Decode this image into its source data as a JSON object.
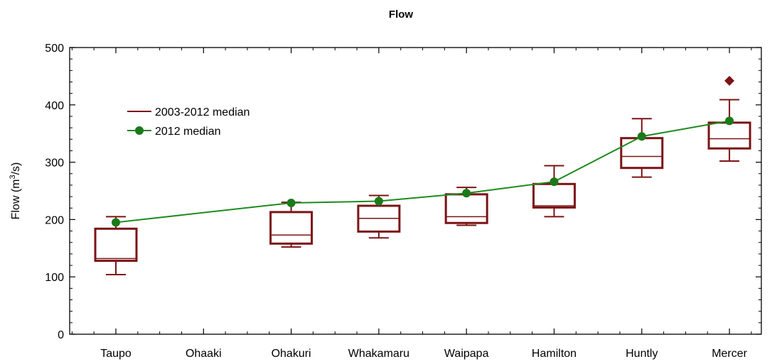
{
  "chart_data": {
    "type": "box",
    "title": "Flow",
    "xlabel": "",
    "ylabel_prefix": "Flow (m",
    "ylabel_sup": "3",
    "ylabel_suffix": "/s)",
    "ylim": [
      0,
      500
    ],
    "yticks": [
      0,
      100,
      200,
      300,
      400,
      500
    ],
    "categories": [
      "Taupo",
      "Ohaaki",
      "Ohakuri",
      "Whakamaru",
      "Waipapa",
      "Hamilton",
      "Huntly",
      "Mercer"
    ],
    "box_color": "#7b1416",
    "line_color": "#1f8a1f",
    "marker_color": "#1a7a1a",
    "outlier_color": "#7b1416",
    "legend": {
      "placement": "top-left",
      "box_label": "2003-2012 median",
      "line_label": "2012 median"
    },
    "boxes": [
      {
        "category": "Taupo",
        "whisker_low": 104,
        "q1": 128,
        "median": 132,
        "q3": 184,
        "whisker_high": 205
      },
      {
        "category": "Ohaaki",
        "whisker_low": null,
        "q1": null,
        "median": null,
        "q3": null,
        "whisker_high": null
      },
      {
        "category": "Ohakuri",
        "whisker_low": 152,
        "q1": 158,
        "median": 173,
        "q3": 213,
        "whisker_high": 230
      },
      {
        "category": "Whakamaru",
        "whisker_low": 168,
        "q1": 179,
        "median": 202,
        "q3": 224,
        "whisker_high": 242
      },
      {
        "category": "Waipapa",
        "whisker_low": 190,
        "q1": 194,
        "median": 205,
        "q3": 244,
        "whisker_high": 256
      },
      {
        "category": "Hamilton",
        "whisker_low": 205,
        "q1": 221,
        "median": 224,
        "q3": 262,
        "whisker_high": 294
      },
      {
        "category": "Huntly",
        "whisker_low": 274,
        "q1": 290,
        "median": 310,
        "q3": 342,
        "whisker_high": 376
      },
      {
        "category": "Mercer",
        "whisker_low": 302,
        "q1": 324,
        "median": 341,
        "q3": 369,
        "whisker_high": 409
      }
    ],
    "outliers": [
      {
        "category": "Mercer",
        "value": 442
      }
    ],
    "series": [
      {
        "name": "2012 median",
        "points": [
          {
            "category": "Taupo",
            "value": 195
          },
          {
            "category": "Ohakuri",
            "value": 229
          },
          {
            "category": "Whakamaru",
            "value": 232
          },
          {
            "category": "Waipapa",
            "value": 246
          },
          {
            "category": "Hamilton",
            "value": 266
          },
          {
            "category": "Huntly",
            "value": 345
          },
          {
            "category": "Mercer",
            "value": 372
          }
        ]
      }
    ]
  }
}
